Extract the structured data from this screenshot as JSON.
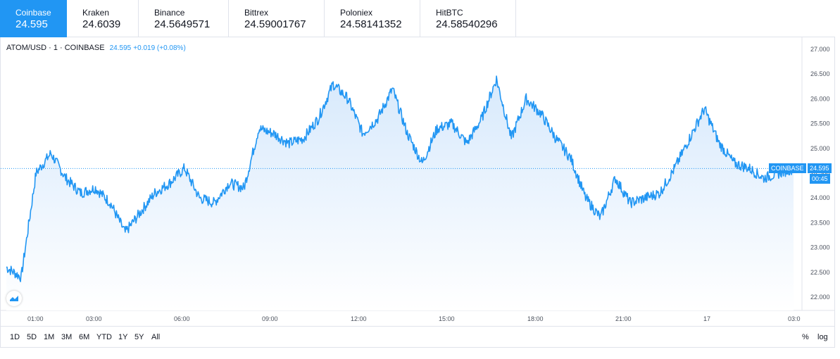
{
  "tabs": [
    {
      "name": "Coinbase",
      "price": "24.595",
      "active": true
    },
    {
      "name": "Kraken",
      "price": "24.6039",
      "active": false
    },
    {
      "name": "Binance",
      "price": "24.5649571",
      "active": false
    },
    {
      "name": "Bittrex",
      "price": "24.59001767",
      "active": false
    },
    {
      "name": "Poloniex",
      "price": "24.58141352",
      "active": false
    },
    {
      "name": "HitBTC",
      "price": "24.58540296",
      "active": false
    }
  ],
  "legend": {
    "symbol": "ATOM/USD · 1 · COINBASE",
    "last": "24.595",
    "change": "+0.019 (+0.08%)"
  },
  "price_axis": {
    "ticks": [
      "27.000",
      "26.500",
      "26.000",
      "25.500",
      "25.000",
      "24.500",
      "24.000",
      "23.500",
      "23.000",
      "22.500",
      "22.000"
    ],
    "last_label": "24.595",
    "countdown": "00:45",
    "series_tag": "COINBASE"
  },
  "time_axis": {
    "ticks": [
      "01:00",
      "03:00",
      "06:00",
      "09:00",
      "12:00",
      "15:00",
      "18:00",
      "21:00",
      "17",
      "03:0"
    ]
  },
  "toolbar": {
    "timeframes": [
      "1D",
      "5D",
      "1M",
      "3M",
      "6M",
      "YTD",
      "1Y",
      "5Y",
      "All"
    ],
    "percent": "%",
    "log": "log"
  },
  "colors": {
    "accent": "#2196f3",
    "line": "#2196f3",
    "fill_top": "#d7e9fc",
    "fill_bottom": "#ffffff"
  },
  "chart_data": {
    "type": "area",
    "series": [
      {
        "name": "COINBASE",
        "x": [
          "00:00",
          "00:30",
          "01:00",
          "01:30",
          "02:00",
          "02:30",
          "03:00",
          "03:30",
          "04:00",
          "04:30",
          "05:00",
          "05:30",
          "06:00",
          "06:30",
          "07:00",
          "07:30",
          "08:00",
          "08:30",
          "09:00",
          "09:30",
          "10:00",
          "10:30",
          "11:00",
          "11:30",
          "12:00",
          "12:30",
          "13:00",
          "13:30",
          "14:00",
          "14:30",
          "15:00",
          "15:30",
          "16:00",
          "16:30",
          "17:00",
          "17:30",
          "18:00",
          "18:30",
          "19:00",
          "19:30",
          "20:00",
          "20:30",
          "21:00",
          "21:30",
          "22:00",
          "22:30",
          "23:00",
          "23:30",
          "00:00",
          "00:30",
          "01:00",
          "01:30",
          "02:00",
          "02:30"
        ],
        "values": [
          22.6,
          22.4,
          24.5,
          24.9,
          24.4,
          24.1,
          24.2,
          23.9,
          23.3,
          23.7,
          24.1,
          24.3,
          24.6,
          24.0,
          23.9,
          24.3,
          24.2,
          25.4,
          25.3,
          25.1,
          25.2,
          25.6,
          26.3,
          26.0,
          25.3,
          25.6,
          26.2,
          25.3,
          24.7,
          25.4,
          25.5,
          25.1,
          25.6,
          26.4,
          25.2,
          26.0,
          25.7,
          25.2,
          24.8,
          24.0,
          23.6,
          24.4,
          23.9,
          24.0,
          24.1,
          24.6,
          25.2,
          25.8,
          25.1,
          24.7,
          24.6,
          24.4,
          24.5,
          24.595
        ]
      }
    ],
    "ylim": [
      21.9,
      27.1
    ],
    "grid": false,
    "legend": "top-left"
  }
}
